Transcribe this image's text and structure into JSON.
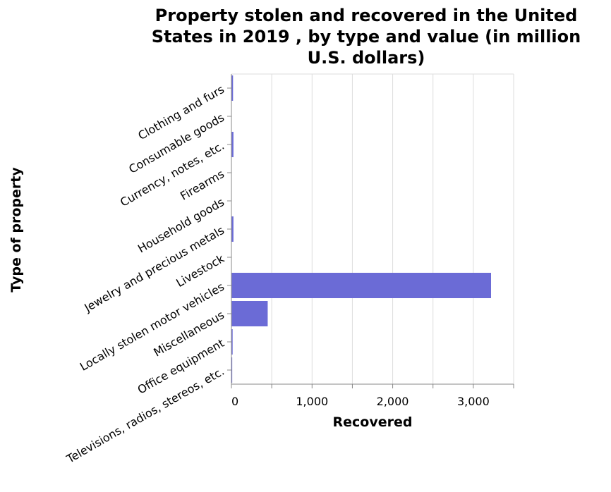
{
  "chart_data": {
    "type": "bar",
    "orientation": "horizontal",
    "title_lines": [
      "Property stolen and recovered in the United",
      "States in 2019 , by type and value (in million",
      "U.S. dollars)"
    ],
    "xlabel": "Recovered",
    "ylabel": "Type of property",
    "categories": [
      "Clothing and furs",
      "Consumable goods",
      "Currency, notes, etc.",
      "Firearms",
      "Household goods",
      "Jewelry and precious metals",
      "Livestock",
      "Locally stolen motor vehicles",
      "Miscellaneous",
      "Office equipment",
      "Televisions, radios, stereos, etc."
    ],
    "values": [
      20,
      3,
      25,
      3,
      4,
      25,
      1,
      3220,
      450,
      15,
      10
    ],
    "xlim": [
      0,
      3500
    ],
    "xticks": [
      0,
      1000,
      2000,
      3000
    ],
    "xtick_labels": [
      "0",
      "1,000",
      "2,000",
      "3,000"
    ],
    "grid": true,
    "bar_color": "#6b6bd6"
  }
}
